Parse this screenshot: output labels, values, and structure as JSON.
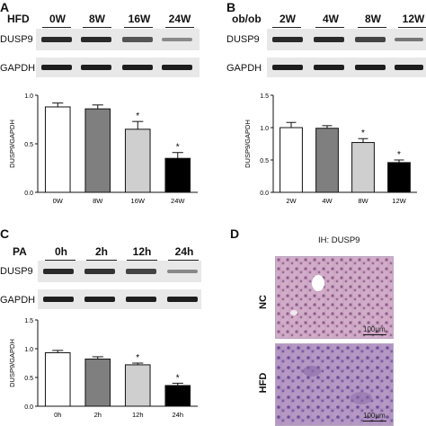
{
  "panels": {
    "A": {
      "letter": "A",
      "condition": "HFD",
      "lanes": [
        "0W",
        "8W",
        "16W",
        "24W"
      ],
      "rows": [
        "DUSP9",
        "GAPDH"
      ]
    },
    "B": {
      "letter": "B",
      "condition": "ob/ob",
      "lanes": [
        "2W",
        "4W",
        "8W",
        "12W"
      ],
      "rows": [
        "DUSP9",
        "GAPDH"
      ]
    },
    "C": {
      "letter": "C",
      "condition": "PA",
      "lanes": [
        "0h",
        "2h",
        "12h",
        "24h"
      ],
      "rows": [
        "DUSP9",
        "GAPDH"
      ]
    },
    "D": {
      "letter": "D",
      "title": "IH: DUSP9",
      "rows": [
        "NC",
        "HFD"
      ],
      "scale": "100μm"
    }
  },
  "colors": {
    "bar_fills": [
      "#ffffff",
      "#7f7f7f",
      "#cfcfcf",
      "#000000"
    ],
    "tissue_bg": "#c9a5c2",
    "tissue_dark": "#7e6aa6"
  },
  "chart_data": [
    {
      "type": "bar",
      "panel": "A",
      "ylabel": "DUSP9/GAPDH",
      "categories": [
        "0W",
        "8W",
        "16W",
        "24W"
      ],
      "values": [
        0.88,
        0.86,
        0.65,
        0.35
      ],
      "errors": [
        0.04,
        0.04,
        0.08,
        0.06
      ],
      "significance": [
        "",
        "",
        "*",
        "*"
      ],
      "ylim": [
        0,
        1.0
      ],
      "yticks": [
        "0.0",
        "0.5",
        "1.0"
      ]
    },
    {
      "type": "bar",
      "panel": "B",
      "ylabel": "DUSP9/GAPDH",
      "categories": [
        "2W",
        "4W",
        "8W",
        "12W"
      ],
      "values": [
        1.0,
        0.99,
        0.77,
        0.46
      ],
      "errors": [
        0.08,
        0.04,
        0.06,
        0.04
      ],
      "significance": [
        "",
        "",
        "*",
        "*"
      ],
      "ylim": [
        0,
        1.5
      ],
      "yticks": [
        "0.0",
        "0.5",
        "1.0",
        "1.5"
      ]
    },
    {
      "type": "bar",
      "panel": "C",
      "ylabel": "DUSP9/GAPDH",
      "categories": [
        "0h",
        "2h",
        "12h",
        "24h"
      ],
      "values": [
        0.93,
        0.82,
        0.72,
        0.36
      ],
      "errors": [
        0.04,
        0.04,
        0.03,
        0.04
      ],
      "significance": [
        "",
        "",
        "*",
        "*"
      ],
      "ylim": [
        0,
        1.5
      ],
      "yticks": [
        "0.0",
        "0.5",
        "1.0",
        "1.5"
      ]
    }
  ]
}
